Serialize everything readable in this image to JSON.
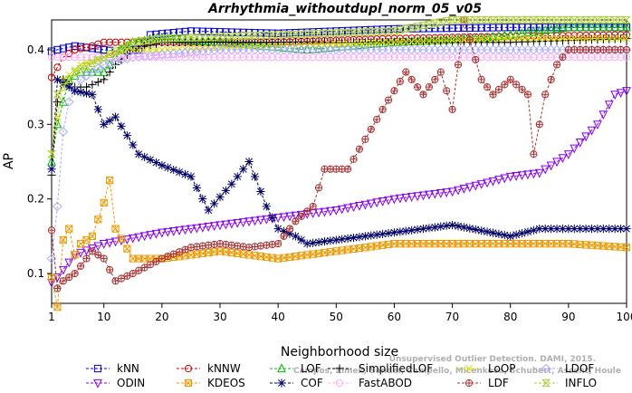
{
  "chart_data": {
    "type": "line",
    "title": "Arrhythmia_withoutdupl_norm_05_v05",
    "xlabel": "Neighborhood size",
    "ylabel": "AP",
    "xlim": [
      1,
      100
    ],
    "ylim": [
      0.06,
      0.44
    ],
    "xticks": [
      1,
      10,
      20,
      30,
      40,
      50,
      60,
      70,
      80,
      90,
      100
    ],
    "yticks": [
      0.1,
      0.2,
      0.3,
      0.4
    ],
    "grid": false,
    "legend_position": "bottom",
    "watermark": [
      "Campos, Zimek, Sander, Campello, Micenkova, Schubert, Assent, Houle",
      "Unsupervised Outlier Detection. DAMI, 2015."
    ],
    "series": [
      {
        "name": "kNN",
        "color": "#0000cc",
        "marker": "square",
        "anchors": [
          [
            1,
            0.398
          ],
          [
            2,
            0.4
          ],
          [
            5,
            0.405
          ],
          [
            10,
            0.4
          ],
          [
            12,
            0.398
          ],
          [
            16,
            0.4
          ],
          [
            18,
            0.42
          ],
          [
            25,
            0.425
          ],
          [
            40,
            0.422
          ],
          [
            60,
            0.428
          ],
          [
            80,
            0.43
          ],
          [
            100,
            0.43
          ]
        ]
      },
      {
        "name": "kNNW",
        "color": "#cc0000",
        "marker": "circle",
        "anchors": [
          [
            1,
            0.363
          ],
          [
            3,
            0.39
          ],
          [
            5,
            0.4
          ],
          [
            8,
            0.405
          ],
          [
            10,
            0.41
          ],
          [
            15,
            0.41
          ],
          [
            20,
            0.41
          ],
          [
            40,
            0.41
          ],
          [
            60,
            0.415
          ],
          [
            80,
            0.418
          ],
          [
            100,
            0.42
          ]
        ]
      },
      {
        "name": "LOF",
        "color": "#00bb00",
        "marker": "triangle-up",
        "anchors": [
          [
            1,
            0.25
          ],
          [
            2,
            0.3
          ],
          [
            4,
            0.36
          ],
          [
            6,
            0.37
          ],
          [
            10,
            0.37
          ],
          [
            13,
            0.4
          ],
          [
            15,
            0.41
          ],
          [
            20,
            0.415
          ],
          [
            30,
            0.41
          ],
          [
            45,
            0.4
          ],
          [
            60,
            0.41
          ],
          [
            75,
            0.415
          ],
          [
            90,
            0.43
          ],
          [
            100,
            0.43
          ]
        ]
      },
      {
        "name": "SimplifiedLOF",
        "color": "#000000",
        "marker": "plus",
        "anchors": [
          [
            1,
            0.232
          ],
          [
            2,
            0.33
          ],
          [
            3,
            0.36
          ],
          [
            5,
            0.35
          ],
          [
            7,
            0.35
          ],
          [
            10,
            0.36
          ],
          [
            12,
            0.38
          ],
          [
            15,
            0.4
          ],
          [
            20,
            0.41
          ],
          [
            40,
            0.41
          ],
          [
            60,
            0.41
          ],
          [
            80,
            0.41
          ],
          [
            100,
            0.415
          ]
        ]
      },
      {
        "name": "LoOP",
        "color": "#dddd00",
        "marker": "cross",
        "anchors": [
          [
            1,
            0.26
          ],
          [
            3,
            0.36
          ],
          [
            6,
            0.38
          ],
          [
            10,
            0.39
          ],
          [
            14,
            0.4
          ],
          [
            20,
            0.4
          ],
          [
            40,
            0.405
          ],
          [
            60,
            0.41
          ],
          [
            80,
            0.415
          ],
          [
            100,
            0.415
          ]
        ]
      },
      {
        "name": "LDOF",
        "color": "#aaaaff",
        "marker": "diamond",
        "anchors": [
          [
            1,
            0.12
          ],
          [
            2,
            0.19
          ],
          [
            3,
            0.29
          ],
          [
            4,
            0.33
          ],
          [
            6,
            0.36
          ],
          [
            10,
            0.38
          ],
          [
            15,
            0.39
          ],
          [
            30,
            0.4
          ],
          [
            60,
            0.4
          ],
          [
            100,
            0.4
          ]
        ]
      },
      {
        "name": "ODIN",
        "color": "#8800ee",
        "marker": "triangle-down",
        "anchors": [
          [
            1,
            0.088
          ],
          [
            2,
            0.095
          ],
          [
            5,
            0.125
          ],
          [
            10,
            0.14
          ],
          [
            20,
            0.155
          ],
          [
            30,
            0.165
          ],
          [
            40,
            0.175
          ],
          [
            50,
            0.185
          ],
          [
            60,
            0.2
          ],
          [
            70,
            0.21
          ],
          [
            80,
            0.23
          ],
          [
            85,
            0.235
          ],
          [
            90,
            0.26
          ],
          [
            95,
            0.3
          ],
          [
            98,
            0.34
          ],
          [
            100,
            0.345
          ]
        ]
      },
      {
        "name": "KDEOS",
        "color": "#ee9900",
        "marker": "square-x",
        "anchors": [
          [
            1,
            0.095
          ],
          [
            2,
            0.055
          ],
          [
            3,
            0.145
          ],
          [
            4,
            0.16
          ],
          [
            5,
            0.125
          ],
          [
            6,
            0.14
          ],
          [
            8,
            0.15
          ],
          [
            10,
            0.195
          ],
          [
            11,
            0.225
          ],
          [
            12,
            0.16
          ],
          [
            15,
            0.12
          ],
          [
            20,
            0.12
          ],
          [
            30,
            0.13
          ],
          [
            40,
            0.12
          ],
          [
            50,
            0.13
          ],
          [
            60,
            0.14
          ],
          [
            70,
            0.14
          ],
          [
            80,
            0.14
          ],
          [
            90,
            0.14
          ],
          [
            100,
            0.135
          ]
        ]
      },
      {
        "name": "COF",
        "color": "#000066",
        "marker": "asterisk",
        "anchors": [
          [
            1,
            0.24
          ],
          [
            2,
            0.36
          ],
          [
            5,
            0.345
          ],
          [
            8,
            0.34
          ],
          [
            10,
            0.3
          ],
          [
            12,
            0.31
          ],
          [
            16,
            0.26
          ],
          [
            20,
            0.245
          ],
          [
            25,
            0.23
          ],
          [
            28,
            0.185
          ],
          [
            32,
            0.22
          ],
          [
            35,
            0.25
          ],
          [
            38,
            0.19
          ],
          [
            40,
            0.16
          ],
          [
            43,
            0.15
          ],
          [
            45,
            0.14
          ],
          [
            50,
            0.145
          ],
          [
            55,
            0.15
          ],
          [
            60,
            0.155
          ],
          [
            70,
            0.165
          ],
          [
            80,
            0.15
          ],
          [
            85,
            0.16
          ],
          [
            90,
            0.16
          ],
          [
            100,
            0.16
          ]
        ]
      },
      {
        "name": "FastABOD",
        "color": "#ffaaff",
        "marker": "circle-open",
        "anchors": [
          [
            1,
            0.39
          ],
          [
            5,
            0.39
          ],
          [
            10,
            0.39
          ],
          [
            20,
            0.39
          ],
          [
            40,
            0.39
          ],
          [
            60,
            0.39
          ],
          [
            80,
            0.39
          ],
          [
            100,
            0.39
          ]
        ]
      },
      {
        "name": "LDF",
        "color": "#aa3333",
        "marker": "circle-plus",
        "anchors": [
          [
            1,
            0.158
          ],
          [
            2,
            0.08
          ],
          [
            3,
            0.09
          ],
          [
            5,
            0.1
          ],
          [
            8,
            0.13
          ],
          [
            10,
            0.12
          ],
          [
            12,
            0.09
          ],
          [
            15,
            0.1
          ],
          [
            20,
            0.12
          ],
          [
            25,
            0.135
          ],
          [
            30,
            0.14
          ],
          [
            35,
            0.135
          ],
          [
            40,
            0.14
          ],
          [
            43,
            0.17
          ],
          [
            46,
            0.19
          ],
          [
            48,
            0.24
          ],
          [
            52,
            0.24
          ],
          [
            55,
            0.28
          ],
          [
            58,
            0.32
          ],
          [
            62,
            0.37
          ],
          [
            65,
            0.34
          ],
          [
            68,
            0.37
          ],
          [
            70,
            0.32
          ],
          [
            72,
            0.44
          ],
          [
            75,
            0.36
          ],
          [
            77,
            0.34
          ],
          [
            80,
            0.36
          ],
          [
            83,
            0.34
          ],
          [
            84,
            0.26
          ],
          [
            86,
            0.34
          ],
          [
            88,
            0.38
          ],
          [
            90,
            0.4
          ],
          [
            95,
            0.4
          ],
          [
            100,
            0.4
          ]
        ]
      },
      {
        "name": "INFLO",
        "color": "#aacc33",
        "marker": "hourglass",
        "anchors": [
          [
            1,
            0.26
          ],
          [
            2,
            0.34
          ],
          [
            5,
            0.37
          ],
          [
            10,
            0.39
          ],
          [
            15,
            0.41
          ],
          [
            20,
            0.415
          ],
          [
            40,
            0.42
          ],
          [
            60,
            0.425
          ],
          [
            70,
            0.44
          ],
          [
            80,
            0.44
          ],
          [
            90,
            0.44
          ],
          [
            100,
            0.44
          ]
        ]
      }
    ]
  }
}
